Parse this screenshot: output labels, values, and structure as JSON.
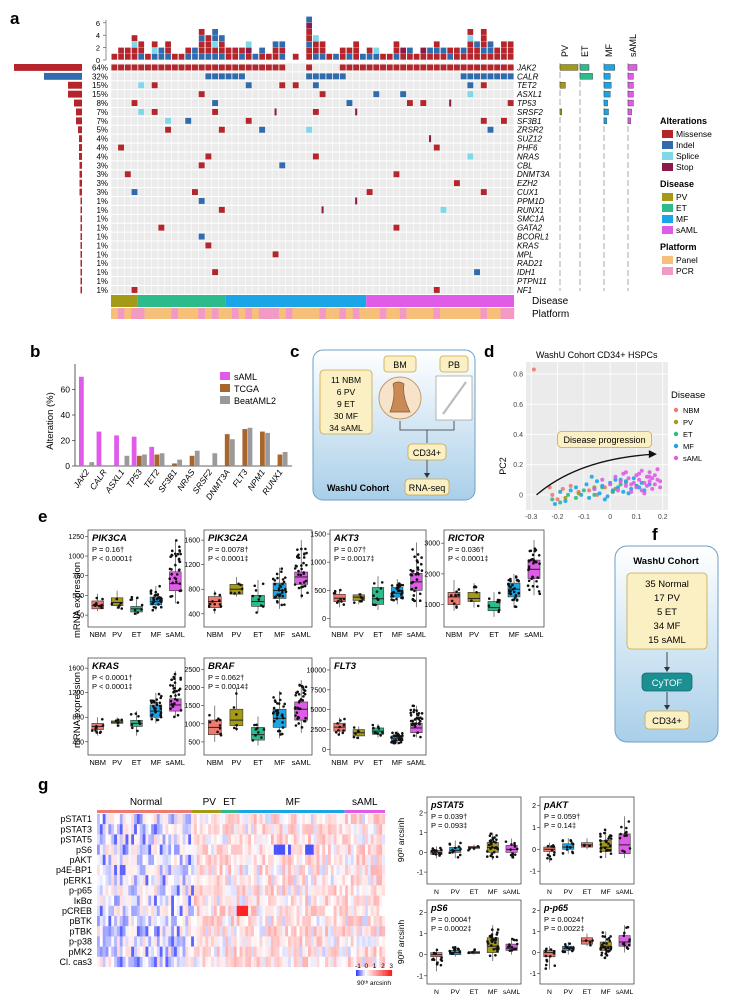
{
  "figure": {
    "panel_labels": [
      "a",
      "b",
      "c",
      "d",
      "e",
      "f",
      "g"
    ],
    "colors": {
      "missense": "#b5262c",
      "indel": "#2f6bad",
      "splice": "#7fd8e8",
      "stop": "#8b1a4a",
      "pv": "#a59a18",
      "et": "#2dbb8c",
      "mf": "#1aa6e6",
      "saml": "#e05ce8",
      "panel": "#f6c07a",
      "pcr": "#f29ac4",
      "nbm": "#f07a6e",
      "normal": "#f07a6e"
    }
  },
  "panel_a": {
    "top_ticks": [
      "6",
      "4",
      "2",
      "0"
    ],
    "genes": [
      "JAK2",
      "CALR",
      "TET2",
      "ASXL1",
      "TP53",
      "SRSF2",
      "SF3B1",
      "ZRSR2",
      "SUZ12",
      "PHF6",
      "NRAS",
      "CBL",
      "DNMT3A",
      "EZH2",
      "CUX1",
      "PPM1D",
      "RUNX1",
      "SMC1A",
      "GATA2",
      "BCORL1",
      "KRAS",
      "MPL",
      "RAD21",
      "IDH1",
      "PTPN11",
      "NF1"
    ],
    "pcts": [
      "64%",
      "32%",
      "15%",
      "15%",
      "8%",
      "7%",
      "7%",
      "5%",
      "4%",
      "4%",
      "4%",
      "3%",
      "3%",
      "3%",
      "3%",
      "1%",
      "1%",
      "1%",
      "1%",
      "1%",
      "1%",
      "1%",
      "1%",
      "1%",
      "1%",
      "1%"
    ],
    "disease_cols": [
      "PV",
      "ET",
      "MF",
      "sAML"
    ],
    "track_labels": [
      "Disease",
      "Platform"
    ],
    "legend": {
      "alterations_title": "Alterations",
      "alterations": [
        "Missense",
        "Indel",
        "Splice",
        "Stop"
      ],
      "disease_title": "Disease",
      "disease": [
        "PV",
        "ET",
        "MF",
        "sAML"
      ],
      "platform_title": "Platform",
      "platform": [
        "Panel",
        "PCR"
      ]
    }
  },
  "panel_b": {
    "legend": [
      "sAML",
      "TCGA",
      "BeatAML2"
    ],
    "chart_data": {
      "type": "bar",
      "title": "",
      "ylabel": "Alteration (%)",
      "ylim": [
        0,
        80
      ],
      "yticks": [
        0,
        20,
        40,
        60
      ],
      "categories": [
        "JAK2",
        "CALR",
        "ASXL1",
        "TP53",
        "TET2",
        "SF3B1",
        "NRAS",
        "SRSF2",
        "DNMT3A",
        "FLT3",
        "NPM1",
        "RUNX1"
      ],
      "series": [
        {
          "name": "sAML",
          "values": [
            70,
            27,
            24,
            23,
            15,
            0,
            0,
            0,
            0,
            0,
            0,
            0
          ]
        },
        {
          "name": "TCGA",
          "values": [
            0,
            0,
            0,
            8,
            9,
            2,
            8,
            0,
            25,
            29,
            27,
            9
          ]
        },
        {
          "name": "BeatAML2",
          "values": [
            3,
            0,
            8,
            9,
            10,
            5,
            12,
            10,
            21,
            30,
            26,
            11
          ]
        }
      ]
    }
  },
  "panel_c": {
    "cohort_lines": [
      "11 NBM",
      "6 PV",
      "9 ET",
      "30 MF",
      "34 sAML"
    ],
    "bm": "BM",
    "pb": "PB",
    "cd34": "CD34+",
    "rnaseq": "RNA-seq",
    "cohort": "WashU Cohort"
  },
  "panel_d": {
    "arrow_label": "Disease progression",
    "legend_title": "Disease",
    "legend": [
      "NBM",
      "PV",
      "ET",
      "MF",
      "sAML"
    ],
    "chart_data": {
      "type": "scatter",
      "title": "WashU Cohort CD34+ HSPCs",
      "xlabel": "",
      "ylabel": "PC2",
      "xlim": [
        -0.32,
        0.22
      ],
      "ylim": [
        -0.1,
        0.88
      ],
      "xticks": [
        -0.3,
        -0.2,
        -0.1,
        0.0,
        0.1,
        0.2
      ],
      "yticks": [
        0.0,
        0.2,
        0.4,
        0.6,
        0.8
      ],
      "series": [
        {
          "name": "NBM",
          "x": [
            -0.29,
            -0.23,
            -0.22,
            -0.2,
            -0.18,
            -0.15,
            -0.12,
            -0.08,
            -0.05,
            -0.02,
            0.01
          ],
          "y": [
            0.83,
            0.05,
            0.0,
            -0.03,
            0.04,
            0.06,
            0.02,
            0.03,
            0.0,
            0.05,
            0.02
          ]
        },
        {
          "name": "PV",
          "x": [
            -0.17,
            -0.12,
            -0.06,
            0.02,
            0.06,
            0.1
          ],
          "y": [
            -0.02,
            0.01,
            0.05,
            0.04,
            0.08,
            0.06
          ]
        },
        {
          "name": "ET",
          "x": [
            -0.22,
            -0.19,
            -0.16,
            -0.13,
            -0.1,
            -0.06,
            -0.03,
            0.01,
            0.04
          ],
          "y": [
            -0.03,
            -0.05,
            0.0,
            -0.02,
            0.03,
            0.0,
            0.05,
            0.02,
            0.07
          ]
        },
        {
          "name": "MF",
          "x": [
            -0.21,
            -0.19,
            -0.17,
            -0.15,
            -0.13,
            -0.11,
            -0.09,
            -0.08,
            -0.06,
            -0.05,
            -0.04,
            -0.03,
            -0.01,
            0.0,
            0.01,
            0.02,
            0.03,
            0.05,
            0.06,
            0.08,
            0.09,
            0.1,
            0.12,
            0.13,
            0.15,
            -0.07,
            -0.02,
            0.04,
            0.07,
            0.11
          ],
          "y": [
            -0.06,
            0.02,
            -0.04,
            0.03,
            0.05,
            0.0,
            0.07,
            -0.02,
            0.04,
            0.09,
            0.01,
            0.06,
            -0.01,
            0.08,
            0.03,
            0.1,
            0.05,
            0.02,
            0.09,
            0.04,
            0.11,
            0.06,
            0.08,
            0.03,
            0.07,
            0.12,
            -0.03,
            0.1,
            0.01,
            0.05
          ]
        },
        {
          "name": "sAML",
          "x": [
            -0.06,
            -0.03,
            0.0,
            0.02,
            0.03,
            0.04,
            0.05,
            0.06,
            0.07,
            0.08,
            0.09,
            0.1,
            0.1,
            0.11,
            0.12,
            0.12,
            0.13,
            0.14,
            0.14,
            0.15,
            0.15,
            0.16,
            0.16,
            0.17,
            0.17,
            0.18,
            0.18,
            0.19,
            0.11,
            0.13,
            0.06,
            0.08,
            0.15,
            0.19
          ],
          "y": [
            0.04,
            0.1,
            0.07,
            0.12,
            0.03,
            0.09,
            0.14,
            0.06,
            0.11,
            0.02,
            0.08,
            0.13,
            0.05,
            0.1,
            0.16,
            0.03,
            0.08,
            0.12,
            0.06,
            0.15,
            0.09,
            0.11,
            0.04,
            0.13,
            0.07,
            0.1,
            0.17,
            0.05,
            0.14,
            0.01,
            0.15,
            0.07,
            0.12,
            0.09
          ]
        }
      ]
    }
  },
  "panel_e": {
    "ylabel": "mRNA expression",
    "groups": [
      "NBM",
      "PV",
      "ET",
      "MF",
      "sAML"
    ],
    "chart_data": [
      {
        "type": "box",
        "title": "PIK3CA",
        "p1": "P = 0.16†",
        "p2": "P < 0.0001‡",
        "yticks": [
          250,
          500,
          750,
          1000,
          1250
        ],
        "ylim": [
          150,
          1280
        ],
        "boxes": [
          [
            300,
            330,
            370,
            430,
            520
          ],
          [
            330,
            370,
            410,
            470,
            560
          ],
          [
            250,
            290,
            330,
            360,
            480
          ],
          [
            310,
            380,
            420,
            480,
            620
          ],
          [
            400,
            560,
            650,
            800,
            1200
          ]
        ]
      },
      {
        "type": "box",
        "title": "PIK3C2A",
        "p1": "P = 0.0078†",
        "p2": "P < 0.0001‡",
        "yticks": [
          400,
          800,
          1200,
          1600
        ],
        "ylim": [
          250,
          1700
        ],
        "boxes": [
          [
            400,
            500,
            600,
            680,
            780
          ],
          [
            680,
            720,
            800,
            880,
            1000
          ],
          [
            420,
            520,
            600,
            700,
            950
          ],
          [
            480,
            650,
            780,
            900,
            1150
          ],
          [
            650,
            880,
            1000,
            1080,
            1600
          ]
        ]
      },
      {
        "type": "box",
        "title": "AKT3",
        "p1": "P = 0.07†",
        "p2": "P = 0.0017‡",
        "yticks": [
          0,
          500,
          1000,
          1500
        ],
        "ylim": [
          -80,
          1500
        ],
        "boxes": [
          [
            200,
            300,
            360,
            430,
            520
          ],
          [
            250,
            320,
            380,
            420,
            450
          ],
          [
            150,
            250,
            350,
            550,
            750
          ],
          [
            250,
            380,
            450,
            550,
            700
          ],
          [
            200,
            500,
            650,
            800,
            1350
          ]
        ]
      },
      {
        "type": "box",
        "title": "RICTOR",
        "p1": "P = 0.036†",
        "p2": "P < 0.0001‡",
        "yticks": [
          1000,
          2000,
          3000
        ],
        "ylim": [
          400,
          3300
        ],
        "boxes": [
          [
            800,
            1000,
            1250,
            1400,
            1800
          ],
          [
            900,
            1100,
            1200,
            1400,
            1700
          ],
          [
            600,
            800,
            900,
            1100,
            1400
          ],
          [
            900,
            1250,
            1500,
            1700,
            2000
          ],
          [
            1300,
            1850,
            2150,
            2450,
            3100
          ]
        ]
      },
      {
        "type": "box",
        "title": "KRAS",
        "p1": "P < 0.0001†",
        "p2": "P < 0.0001‡",
        "yticks": [
          400,
          800,
          1200,
          1600
        ],
        "ylim": [
          250,
          1700
        ],
        "boxes": [
          [
            500,
            600,
            650,
            700,
            800
          ],
          [
            640,
            700,
            720,
            740,
            800
          ],
          [
            500,
            650,
            700,
            750,
            900
          ],
          [
            700,
            800,
            900,
            1000,
            1200
          ],
          [
            800,
            900,
            1000,
            1100,
            1550
          ]
        ]
      },
      {
        "type": "box",
        "title": "BRAF",
        "p1": "P = 0.062†",
        "p2": "P = 0.0014‡",
        "yticks": [
          500,
          1000,
          1500,
          2000,
          2500
        ],
        "ylim": [
          250,
          2700
        ],
        "boxes": [
          [
            500,
            700,
            900,
            1100,
            1500
          ],
          [
            800,
            950,
            1100,
            1400,
            2000
          ],
          [
            400,
            550,
            700,
            900,
            1200
          ],
          [
            600,
            900,
            1150,
            1400,
            1900
          ],
          [
            750,
            1100,
            1400,
            1600,
            2200
          ]
        ]
      },
      {
        "type": "box",
        "title": "FLT3",
        "p1": "",
        "p2": "",
        "yticks": [
          0,
          2500,
          5000,
          7500,
          10000
        ],
        "ylim": [
          -200,
          11000
        ],
        "boxes": [
          [
            1800,
            2300,
            2800,
            3300,
            4000
          ],
          [
            1300,
            1700,
            2100,
            2500,
            2900
          ],
          [
            1500,
            1900,
            2300,
            2700,
            3200
          ],
          [
            600,
            1100,
            1400,
            1700,
            2300
          ],
          [
            1500,
            2100,
            2700,
            3300,
            5500
          ]
        ]
      }
    ]
  },
  "panel_f": {
    "title": "WashU Cohort",
    "cohort_lines": [
      "35 Normal",
      "17 PV",
      "5 ET",
      "34 MF",
      "15 sAML"
    ],
    "cytof": "CyTOF",
    "cd34": "CD34+"
  },
  "panel_g": {
    "groups": [
      "Normal",
      "PV",
      "ET",
      "MF",
      "sAML"
    ],
    "markers": [
      "pSTAT1",
      "pSTAT3",
      "pSTAT5",
      "pS6",
      "pAKT",
      "p4E-BP1",
      "pERK1",
      "p-p65",
      "IκBα",
      "pCREB",
      "pBTK",
      "pTBK",
      "p-p38",
      "pMK2",
      "Cl. cas3"
    ],
    "scale_ticks": [
      "-1",
      "0",
      "1",
      "2",
      "3"
    ],
    "scale_label": "90ᵗʰ arcsinh",
    "box_ylabel": "90ᵗʰ arcsinh",
    "box_groups": [
      "N",
      "PV",
      "ET",
      "MF",
      "sAML"
    ],
    "chart_data": [
      {
        "type": "box",
        "title": "pSTAT5",
        "p1": "P = 0.039†",
        "p2": "P = 0.093‡",
        "yticks": [
          -1,
          0,
          1,
          2
        ],
        "ylim": [
          -1.4,
          2.6
        ],
        "boxes": [
          [
            -0.3,
            -0.1,
            0.0,
            0.1,
            0.3
          ],
          [
            -0.3,
            0.0,
            0.1,
            0.25,
            0.6
          ],
          [
            0.1,
            0.2,
            0.25,
            0.3,
            0.4
          ],
          [
            -0.4,
            0.0,
            0.25,
            0.5,
            1.0
          ],
          [
            -0.3,
            0.0,
            0.15,
            0.35,
            0.7
          ]
        ]
      },
      {
        "type": "box",
        "title": "pAKT",
        "p1": "P = 0.059†",
        "p2": "P = 0.14‡",
        "yticks": [
          -1,
          0,
          1,
          2
        ],
        "ylim": [
          -1.4,
          2.2
        ],
        "boxes": [
          [
            -0.6,
            -0.1,
            0.0,
            0.1,
            0.3
          ],
          [
            -0.2,
            0.0,
            0.1,
            0.25,
            0.5
          ],
          [
            0.0,
            0.1,
            0.2,
            0.3,
            0.5
          ],
          [
            -0.4,
            -0.1,
            0.1,
            0.4,
            0.9
          ],
          [
            -0.4,
            -0.2,
            0.2,
            0.7,
            1.5
          ]
        ]
      },
      {
        "type": "box",
        "title": "pS6",
        "p1": "P = 0.0004†",
        "p2": "P = 0.0002‡",
        "yticks": [
          -1,
          0,
          1,
          2
        ],
        "ylim": [
          -1.2,
          2.4
        ],
        "boxes": [
          [
            -0.8,
            -0.1,
            0.0,
            0.1,
            0.3
          ],
          [
            -0.1,
            0.0,
            0.1,
            0.2,
            0.4
          ],
          [
            0.0,
            0.05,
            0.1,
            0.15,
            0.3
          ],
          [
            -0.3,
            0.1,
            0.4,
            0.8,
            1.4
          ],
          [
            0.0,
            0.2,
            0.3,
            0.5,
            0.8
          ]
        ]
      },
      {
        "type": "box",
        "title": "p-p65",
        "p1": "P = 0.0024†",
        "p2": "P = 0.0022‡",
        "yticks": [
          -1,
          0,
          1,
          2
        ],
        "ylim": [
          -1.3,
          2.3
        ],
        "boxes": [
          [
            -0.8,
            -0.2,
            0.0,
            0.1,
            0.3
          ],
          [
            -0.1,
            0.1,
            0.2,
            0.3,
            0.5
          ],
          [
            0.3,
            0.4,
            0.55,
            0.7,
            0.9
          ],
          [
            -0.3,
            0.1,
            0.3,
            0.5,
            1.0
          ],
          [
            0.0,
            0.3,
            0.5,
            0.8,
            1.3
          ]
        ]
      }
    ]
  }
}
